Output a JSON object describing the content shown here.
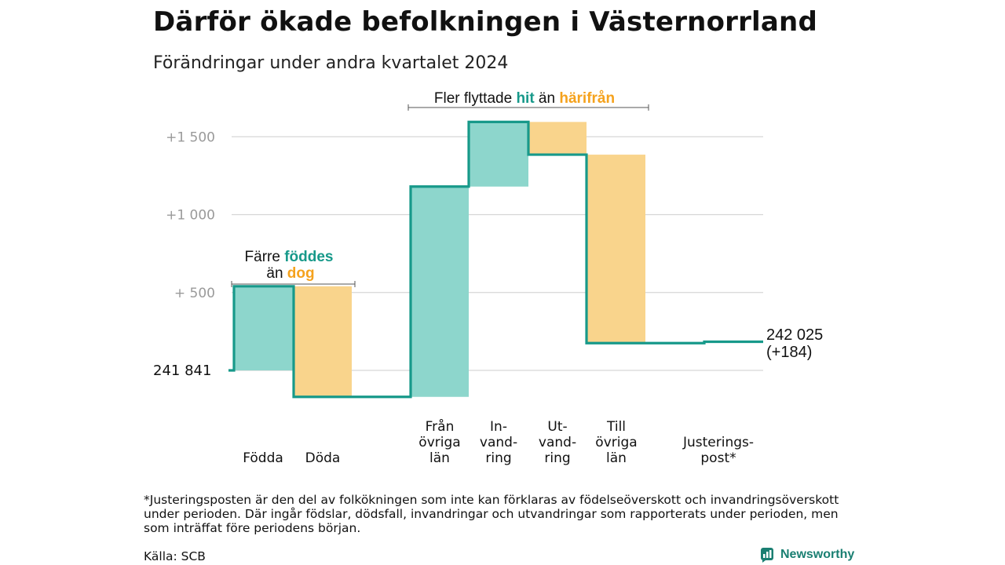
{
  "title": "Därför ökade befolkningen i Västernorrland",
  "subtitle": "Förändringar under andra kvartalet 2024",
  "annotations": {
    "births_deaths": {
      "line1_a": "Färre ",
      "line1_b": "föddes",
      "line2_a": "än ",
      "line2_b": "dog"
    },
    "migration": {
      "a": "Fler flyttade ",
      "b": "hit",
      "c": " än ",
      "d": "härifrån"
    }
  },
  "footnote": "*Justeringsposten är den del av folkökningen som inte kan förklaras av födelseöverskott och invandringsöverskott under perioden. Där ingår födslar, dödsfall, invandringar och utvandringar som rapporterats under perioden, men som inträffat före periodens början.",
  "source": "Källa: SCB",
  "brand": "Newsworthy",
  "chart_data": {
    "type": "waterfall",
    "start_value": 241841,
    "start_label": "241  841",
    "end_label_1": "242 025",
    "end_label_2": "(+184)",
    "y_ticks": [
      {
        "value": 500,
        "label": "+  500"
      },
      {
        "value": 1000,
        "label": "+1   000"
      },
      {
        "value": 1500,
        "label": "+1   500"
      }
    ],
    "ylim": [
      -170,
      1620
    ],
    "steps": [
      {
        "label_lines": [
          "Födda"
        ],
        "start": 0,
        "end": 540,
        "kind": "increase"
      },
      {
        "label_lines": [
          "Döda"
        ],
        "start": 540,
        "end": -170,
        "kind": "decrease"
      },
      {
        "label_lines": [
          "Från",
          "övriga",
          "län"
        ],
        "start": -170,
        "end": 1180,
        "kind": "increase"
      },
      {
        "label_lines": [
          "In-",
          "vand-",
          "ring"
        ],
        "start": 1180,
        "end": 1595,
        "kind": "increase"
      },
      {
        "label_lines": [
          "Ut-",
          "vand-",
          "ring"
        ],
        "start": 1595,
        "end": 1385,
        "kind": "decrease"
      },
      {
        "label_lines": [
          "Till",
          "övriga",
          "län"
        ],
        "start": 1385,
        "end": 175,
        "kind": "decrease"
      },
      {
        "label_lines": [
          "Justerings-",
          "post*"
        ],
        "start": 175,
        "end": 184,
        "kind": "increase"
      }
    ],
    "colors": {
      "increase": "#8dd6cc",
      "decrease": "#f9d48c",
      "line": "#17998a",
      "grid": "#d6d6d6"
    }
  }
}
